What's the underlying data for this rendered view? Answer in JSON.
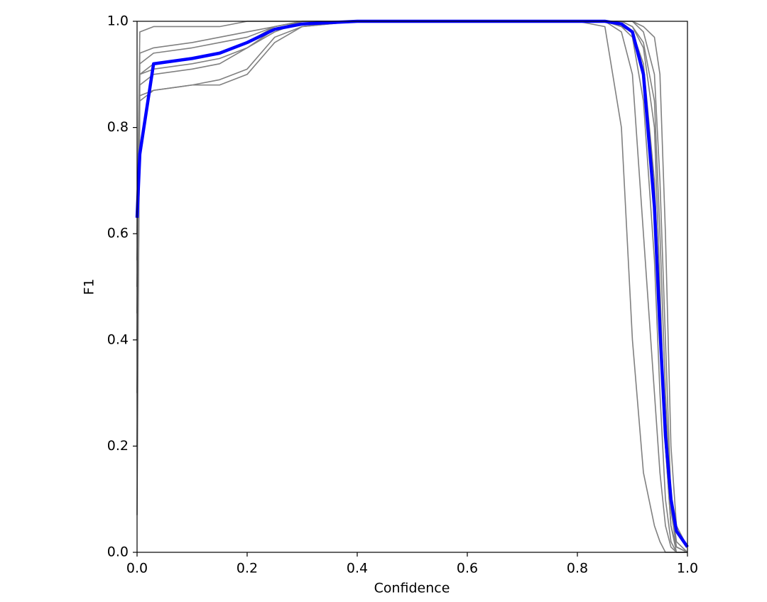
{
  "chart_data": {
    "type": "line",
    "x_label": "Confidence",
    "y_label": "F1",
    "x": [
      0,
      0.005,
      0.03,
      0.1,
      0.15,
      0.2,
      0.25,
      0.3,
      0.4,
      0.6,
      0.8,
      0.85,
      0.88,
      0.9,
      0.92,
      0.94,
      0.95,
      0.96,
      0.97,
      0.98,
      1.0
    ],
    "series": [
      {
        "color": "#808080",
        "values": [
          0.07,
          0.9,
          0.92,
          0.93,
          0.94,
          0.96,
          0.99,
          1,
          1,
          1,
          1,
          1,
          0.99,
          0.97,
          0.85,
          0.55,
          0.3,
          0.1,
          0.02,
          0,
          0
        ]
      },
      {
        "color": "#808080",
        "values": [
          0.5,
          0.86,
          0.87,
          0.88,
          0.89,
          0.91,
          0.97,
          0.99,
          1,
          1,
          1,
          1,
          1,
          0.99,
          0.95,
          0.8,
          0.5,
          0.2,
          0.05,
          0.01,
          0
        ]
      },
      {
        "color": "#808080",
        "values": [
          0.6,
          0.98,
          0.99,
          0.99,
          0.99,
          1,
          1,
          1,
          1,
          1,
          1,
          1,
          0.98,
          0.9,
          0.6,
          0.3,
          0.15,
          0.05,
          0.01,
          0,
          0
        ]
      },
      {
        "color": "#808080",
        "values": [
          0.3,
          0.88,
          0.9,
          0.91,
          0.92,
          0.95,
          0.98,
          1,
          1,
          1,
          1,
          1,
          1,
          1,
          0.98,
          0.9,
          0.7,
          0.4,
          0.1,
          0.02,
          0
        ]
      },
      {
        "color": "#808080",
        "values": [
          0.4,
          0.92,
          0.94,
          0.95,
          0.96,
          0.97,
          0.99,
          1,
          1,
          1,
          1,
          1,
          0.99,
          0.98,
          0.92,
          0.7,
          0.45,
          0.2,
          0.05,
          0,
          0
        ]
      },
      {
        "color": "#808080",
        "values": [
          0.2,
          0.85,
          0.87,
          0.88,
          0.88,
          0.9,
          0.96,
          0.99,
          1,
          1,
          1,
          0.99,
          0.8,
          0.4,
          0.15,
          0.05,
          0.02,
          0,
          0,
          0,
          0
        ]
      },
      {
        "color": "#808080",
        "values": [
          0.55,
          0.9,
          0.91,
          0.92,
          0.93,
          0.95,
          0.985,
          1,
          1,
          1,
          1,
          1,
          1,
          1,
          0.99,
          0.97,
          0.9,
          0.6,
          0.2,
          0.05,
          0.01
        ]
      },
      {
        "color": "#808080",
        "values": [
          0.45,
          0.94,
          0.95,
          0.96,
          0.97,
          0.98,
          0.99,
          1,
          1,
          1,
          1,
          1,
          1,
          0.99,
          0.96,
          0.85,
          0.6,
          0.3,
          0.08,
          0.01,
          0
        ]
      },
      {
        "color": "#0000ff",
        "values": [
          0.63,
          0.75,
          0.92,
          0.93,
          0.94,
          0.96,
          0.985,
          0.995,
          1,
          1,
          1,
          1,
          0.995,
          0.98,
          0.9,
          0.65,
          0.42,
          0.22,
          0.1,
          0.04,
          0.01
        ]
      }
    ],
    "xlim": [
      0,
      1
    ],
    "ylim": [
      0,
      1
    ],
    "xticks": [
      {
        "value": 0,
        "label": "0.0"
      },
      0.2,
      0.4,
      0.6,
      0.8,
      {
        "value": 1,
        "label": "1.0"
      }
    ],
    "yticks": [
      {
        "value": 0,
        "label": "0.0"
      },
      0.2,
      0.4,
      0.6,
      0.8,
      {
        "value": 1,
        "label": "1.0"
      }
    ],
    "grid": false
  }
}
